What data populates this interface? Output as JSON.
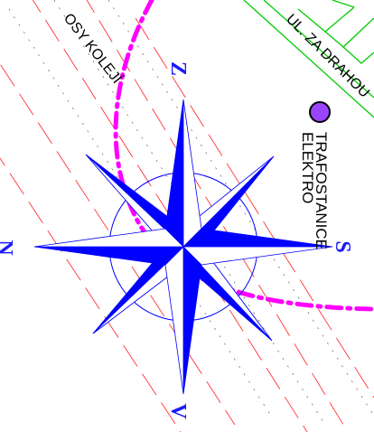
{
  "labels": {
    "tracks": "OSY KOLEJÍ",
    "street": "UL. ZA DRAHOU",
    "substation_line1": "TRAFOSTANICE",
    "substation_line2": "ELEKTRO"
  },
  "compass": {
    "north": "N",
    "south": "S",
    "east": "V",
    "west": "Z"
  },
  "colors": {
    "compass_fill": "#0000ff",
    "boundary_dashdot": "#ff00ff",
    "rail_axis": "#ff3333",
    "street_outline": "#00cc00",
    "substation_marker": "#9a44ff"
  },
  "icons": {
    "substation": "substation-marker-icon",
    "compass": "compass-rose-icon"
  }
}
